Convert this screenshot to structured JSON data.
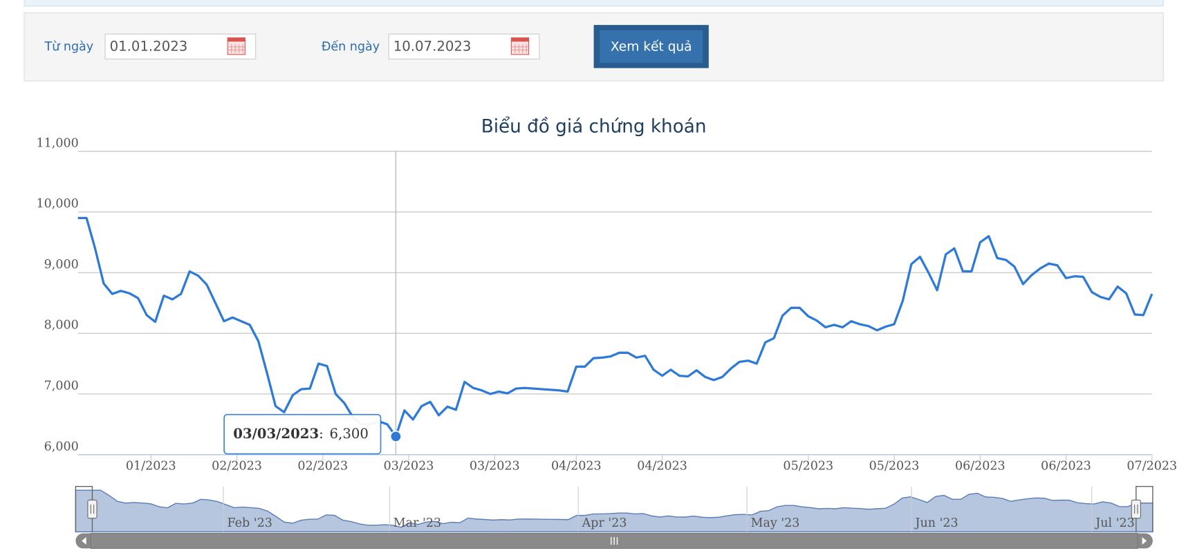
{
  "form": {
    "from_label": "Từ ngày",
    "from_value": "01.01.2023",
    "to_label": "Đến ngày",
    "to_value": "10.07.2023",
    "button": "Xem kết quả"
  },
  "chart_data": {
    "type": "line",
    "title": "Biểu đồ giá chứng khoán",
    "color": "#2e7ad6",
    "grid": true,
    "values": [
      9900,
      9900,
      9400,
      8820,
      8650,
      8700,
      8660,
      8580,
      8300,
      8190,
      8620,
      8560,
      8650,
      9020,
      8950,
      8800,
      8500,
      8200,
      8260,
      8200,
      8140,
      7870,
      7350,
      6800,
      6700,
      6980,
      7080,
      7090,
      7500,
      7460,
      7000,
      6850,
      6620,
      6500,
      6500,
      6550,
      6500,
      6300,
      6730,
      6580,
      6800,
      6870,
      6650,
      6790,
      6740,
      7200,
      7100,
      7060,
      7000,
      7040,
      7010,
      7090,
      7100,
      7090,
      7080,
      7070,
      7060,
      7040,
      7450,
      7450,
      7590,
      7600,
      7620,
      7680,
      7680,
      7600,
      7630,
      7400,
      7300,
      7400,
      7300,
      7290,
      7390,
      7280,
      7230,
      7280,
      7420,
      7530,
      7550,
      7500,
      7850,
      7920,
      8290,
      8420,
      8420,
      8280,
      8210,
      8100,
      8140,
      8100,
      8200,
      8150,
      8120,
      8050,
      8110,
      8150,
      8540,
      9140,
      9260,
      9000,
      8710,
      9300,
      9400,
      9020,
      9020,
      9500,
      9600,
      9240,
      9210,
      9100,
      8810,
      8960,
      9070,
      9150,
      9120,
      8910,
      8940,
      8930,
      8680,
      8600,
      8560,
      8770,
      8660,
      8310,
      8300,
      8650
    ],
    "xlim": [
      0,
      125
    ],
    "xticks": [
      {
        "value": 8.5,
        "label": "01/2023"
      },
      {
        "value": 18.5,
        "label": "02/2023"
      },
      {
        "value": 28.5,
        "label": "02/2023"
      },
      {
        "value": 38.5,
        "label": "03/2023"
      },
      {
        "value": 48.5,
        "label": "03/2023"
      },
      {
        "value": 58,
        "label": "04/2023"
      },
      {
        "value": 68,
        "label": "04/2023"
      },
      {
        "value": 85,
        "label": "05/2023"
      },
      {
        "value": 95,
        "label": "05/2023"
      },
      {
        "value": 105,
        "label": "06/2023"
      },
      {
        "value": 115,
        "label": "06/2023"
      },
      {
        "value": 125,
        "label": "07/2023"
      }
    ],
    "ylim": [
      6000,
      11000
    ],
    "yticks": [
      {
        "value": 6000,
        "label": "6,000"
      },
      {
        "value": 7000,
        "label": "7,000"
      },
      {
        "value": 8000,
        "label": "8,000"
      },
      {
        "value": 9000,
        "label": "9,000"
      },
      {
        "value": 10000,
        "label": "10,000"
      },
      {
        "value": 11000,
        "label": "11,000"
      }
    ],
    "tooltip": {
      "date": "03/03/2023",
      "separator": ":",
      "value": 6300,
      "value_label": "6,300"
    },
    "navigator_ticks": [
      {
        "value": 15.7,
        "label": "Feb '23"
      },
      {
        "value": 35.6,
        "label": "Mar '23"
      },
      {
        "value": 58.2,
        "label": "Apr '23"
      },
      {
        "value": 78.4,
        "label": "May '23"
      },
      {
        "value": 98.1,
        "label": "Jun '23"
      },
      {
        "value": 119.7,
        "label": "Jul '23"
      }
    ]
  }
}
